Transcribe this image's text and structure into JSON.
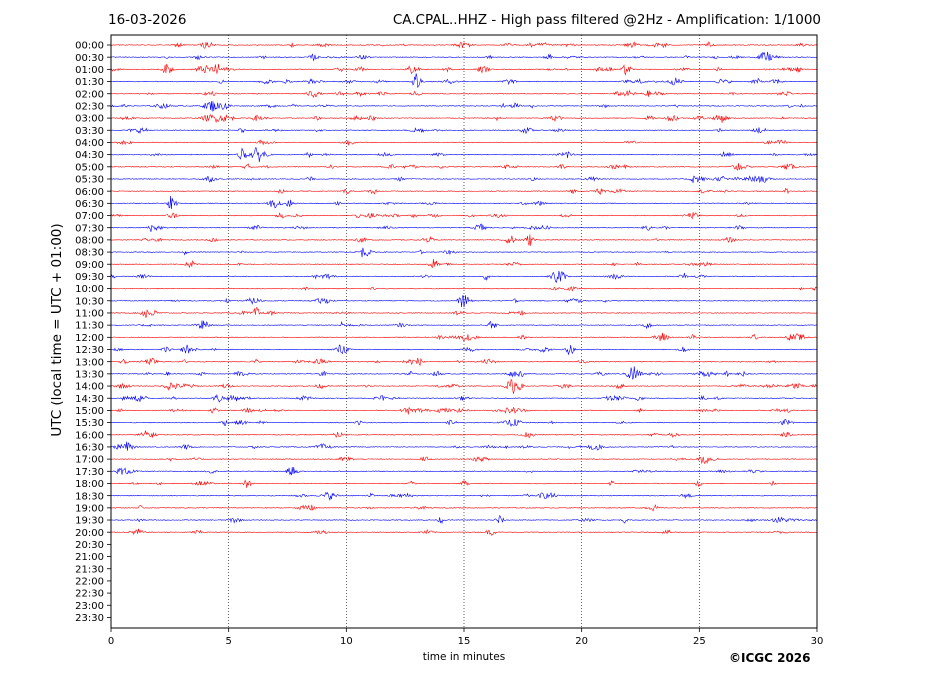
{
  "header": {
    "date": "16-03-2026",
    "title": "CA.CPAL..HHZ - High pass filtered @2Hz - Amplification: 1/1000"
  },
  "footer": {
    "copyright": "©ICGC 2026"
  },
  "chart_data": {
    "type": "line",
    "title": "CA.CPAL..HHZ - High pass filtered @2Hz - Amplification: 1/1000",
    "xlabel": "time in minutes",
    "ylabel": "UTC (local time = UTC + 01:00)",
    "xlim": [
      0,
      30
    ],
    "x_ticks": [
      "0",
      "5",
      "10",
      "15",
      "20",
      "25",
      "30"
    ],
    "vertical_grid": "dotted at 5, 10, 15, 20, 25 minutes",
    "row_labels": [
      "00:00",
      "00:30",
      "01:00",
      "01:30",
      "02:00",
      "02:30",
      "03:00",
      "03:30",
      "04:00",
      "04:30",
      "05:00",
      "05:30",
      "06:00",
      "06:30",
      "07:00",
      "07:30",
      "08:00",
      "08:30",
      "09:00",
      "09:30",
      "10:00",
      "10:30",
      "11:00",
      "11:30",
      "12:00",
      "12:30",
      "13:00",
      "13:30",
      "14:00",
      "14:30",
      "15:00",
      "15:30",
      "16:00",
      "16:30",
      "17:00",
      "17:30",
      "18:00",
      "18:30",
      "19:00",
      "19:30",
      "20:00",
      "20:30",
      "21:00",
      "21:30",
      "22:00",
      "22:30",
      "23:00",
      "23:30"
    ],
    "rows_with_traces": 41,
    "trace_colors": [
      "#ff0000",
      "#0000ff"
    ],
    "color_note": "rows alternate red / blue; 00:00 red, 00:30 blue",
    "events": [
      {
        "row": "00:30",
        "minute": 27.8,
        "amp": 0.9
      },
      {
        "row": "00:30",
        "minute": 18.6,
        "amp": 0.6
      },
      {
        "row": "01:00",
        "minute": 2.4,
        "amp": 0.9
      },
      {
        "row": "01:00",
        "minute": 4.6,
        "amp": 0.6
      },
      {
        "row": "01:00",
        "minute": 12.8,
        "amp": 0.8
      },
      {
        "row": "01:00",
        "minute": 15.8,
        "amp": 0.6
      },
      {
        "row": "01:00",
        "minute": 21.9,
        "amp": 1.0
      },
      {
        "row": "01:30",
        "minute": 13.0,
        "amp": 1.7
      },
      {
        "row": "01:30",
        "minute": 24.0,
        "amp": 0.6
      },
      {
        "row": "02:00",
        "minute": 8.6,
        "amp": 0.6
      },
      {
        "row": "02:30",
        "minute": 4.2,
        "amp": 0.7
      },
      {
        "row": "04:30",
        "minute": 5.6,
        "amp": 1.2
      },
      {
        "row": "04:30",
        "minute": 6.3,
        "amp": 1.0
      },
      {
        "row": "06:30",
        "minute": 2.6,
        "amp": 1.5
      },
      {
        "row": "06:30",
        "minute": 6.9,
        "amp": 0.7
      },
      {
        "row": "07:30",
        "minute": 15.7,
        "amp": 0.7
      },
      {
        "row": "08:00",
        "minute": 17.8,
        "amp": 1.0
      },
      {
        "row": "08:00",
        "minute": 17.0,
        "amp": 0.7
      },
      {
        "row": "09:00",
        "minute": 13.7,
        "amp": 1.0
      },
      {
        "row": "09:00",
        "minute": 3.4,
        "amp": 0.7
      },
      {
        "row": "09:30",
        "minute": 19.0,
        "amp": 1.4
      },
      {
        "row": "10:30",
        "minute": 15.0,
        "amp": 0.9
      },
      {
        "row": "11:00",
        "minute": 1.6,
        "amp": 1.0
      },
      {
        "row": "11:00",
        "minute": 6.2,
        "amp": 0.9
      },
      {
        "row": "11:30",
        "minute": 3.9,
        "amp": 0.9
      },
      {
        "row": "11:30",
        "minute": 16.2,
        "amp": 0.8
      },
      {
        "row": "12:00",
        "minute": 15.2,
        "amp": 0.8
      },
      {
        "row": "12:00",
        "minute": 23.4,
        "amp": 0.8
      },
      {
        "row": "12:30",
        "minute": 9.8,
        "amp": 0.9
      },
      {
        "row": "12:30",
        "minute": 19.5,
        "amp": 0.9
      },
      {
        "row": "12:30",
        "minute": 3.2,
        "amp": 0.8
      },
      {
        "row": "13:30",
        "minute": 22.2,
        "amp": 1.6
      },
      {
        "row": "14:00",
        "minute": 17.1,
        "amp": 0.8
      },
      {
        "row": "17:00",
        "minute": 25.2,
        "amp": 0.6
      },
      {
        "row": "17:30",
        "minute": 7.7,
        "amp": 0.8
      },
      {
        "row": "18:00",
        "minute": 5.8,
        "amp": 0.8
      },
      {
        "row": "19:30",
        "minute": 16.5,
        "amp": 0.8
      },
      {
        "row": "20:00",
        "minute": 1.1,
        "amp": 0.6
      }
    ]
  }
}
